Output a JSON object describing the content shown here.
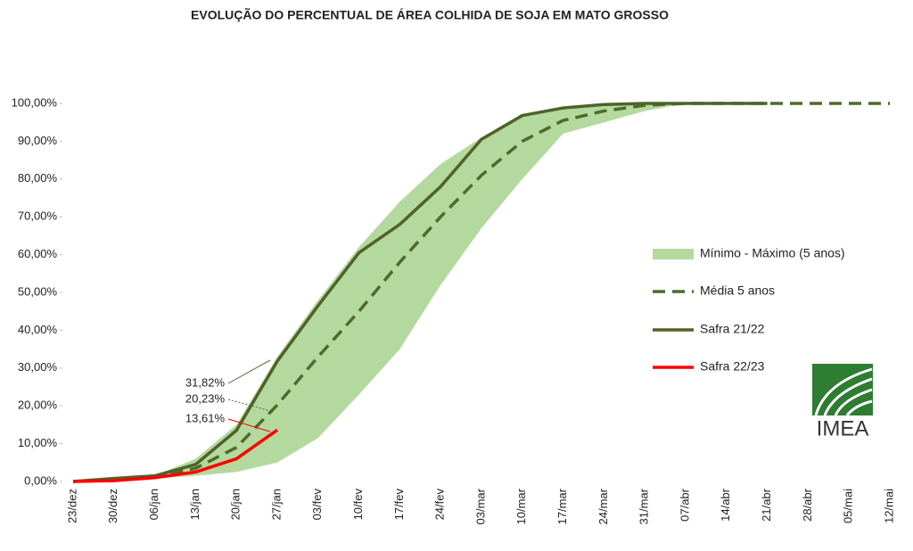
{
  "chart_data": {
    "type": "line",
    "title": "EVOLUÇÃO DO PERCENTUAL DE ÁREA COLHIDA DE SOJA EM MATO GROSSO",
    "logo_text": "IMEA",
    "categories": [
      "23/dez",
      "30/dez",
      "06/jan",
      "13/jan",
      "20/jan",
      "27/jan",
      "03/fev",
      "10/fev",
      "17/fev",
      "24/fev",
      "03/mar",
      "10/mar",
      "17/mar",
      "24/mar",
      "31/mar",
      "07/abr",
      "14/abr",
      "21/abr",
      "28/abr",
      "05/mai",
      "12/mai"
    ],
    "ylim": [
      0,
      100
    ],
    "yticks": [
      {
        "value": 0,
        "label": "0,00%"
      },
      {
        "value": 10,
        "label": "10,00%"
      },
      {
        "value": 20,
        "label": "20,00%"
      },
      {
        "value": 30,
        "label": "30,00%"
      },
      {
        "value": 40,
        "label": "40,00%"
      },
      {
        "value": 50,
        "label": "50,00%"
      },
      {
        "value": 60,
        "label": "60,00%"
      },
      {
        "value": 70,
        "label": "70,00%"
      },
      {
        "value": 80,
        "label": "80,00%"
      },
      {
        "value": 90,
        "label": "90,00%"
      },
      {
        "value": 100,
        "label": "100,00%"
      }
    ],
    "legend": "right",
    "series": [
      {
        "name": "Mínimo - Máximo (5 anos)",
        "type": "area_range",
        "color": "#b4d99e",
        "low": [
          0,
          0.3,
          0.8,
          1.5,
          2.5,
          5,
          11.5,
          23,
          35,
          52,
          67,
          80,
          92,
          95,
          98,
          100,
          100,
          100,
          null,
          null,
          null
        ],
        "high": [
          0,
          0.8,
          1.5,
          6,
          15,
          33,
          48,
          62,
          74,
          84,
          91,
          96.5,
          99,
          100,
          100,
          100,
          100,
          100,
          null,
          null,
          null
        ]
      },
      {
        "name": "Média 5 anos",
        "type": "dashed",
        "color": "#4f6a2a",
        "values": [
          0,
          0.5,
          1.2,
          3.5,
          9,
          20.23,
          33,
          45,
          58,
          70,
          81,
          90,
          95.5,
          98,
          99.5,
          100,
          100,
          100,
          100,
          100,
          100
        ],
        "value_labels": [
          null,
          null,
          null,
          null,
          null,
          "20,23%",
          null,
          null,
          null,
          null,
          null,
          null,
          null,
          null,
          null,
          null,
          null,
          null,
          null,
          null,
          null
        ]
      },
      {
        "name": "Safra 21/22",
        "type": "line",
        "color": "#4f6228",
        "values": [
          0,
          0.8,
          1.5,
          4.5,
          13.5,
          31.82,
          46.5,
          60.5,
          68,
          78,
          90.5,
          96.8,
          98.8,
          99.7,
          100,
          100,
          100,
          100,
          null,
          null,
          null
        ],
        "value_labels": [
          null,
          null,
          null,
          null,
          null,
          "31,82%",
          null,
          null,
          null,
          null,
          null,
          null,
          null,
          null,
          null,
          null,
          null,
          null,
          null,
          null,
          null
        ]
      },
      {
        "name": "Safra 22/23",
        "type": "line",
        "color": "#ff0000",
        "values": [
          0,
          0.2,
          1,
          2.5,
          6,
          13.61,
          null,
          null,
          null,
          null,
          null,
          null,
          null,
          null,
          null,
          null,
          null,
          null,
          null,
          null,
          null
        ],
        "value_labels": [
          null,
          null,
          null,
          null,
          null,
          "13,61%",
          null,
          null,
          null,
          null,
          null,
          null,
          null,
          null,
          null,
          null,
          null,
          null,
          null,
          null,
          null
        ]
      }
    ]
  }
}
